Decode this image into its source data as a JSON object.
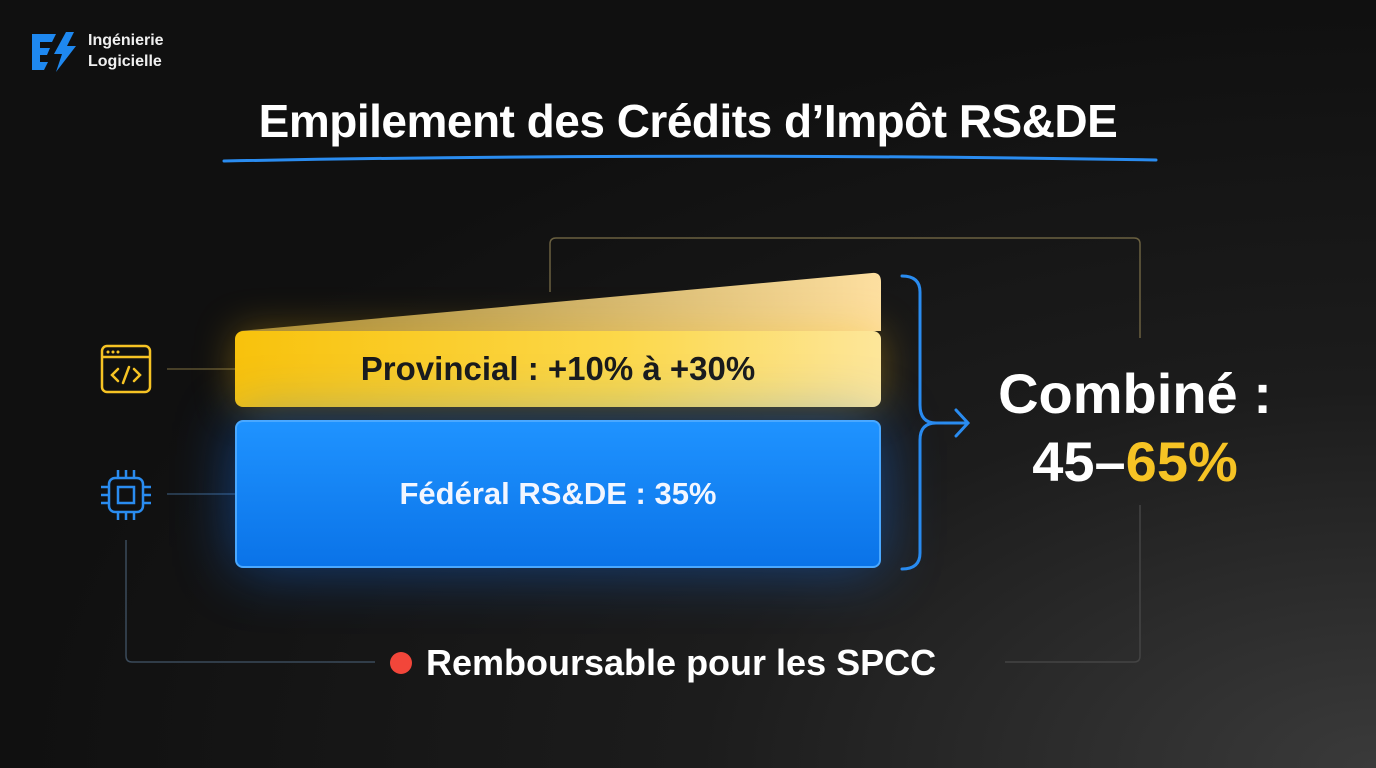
{
  "logo": {
    "line1": "Ingénierie",
    "line2": "Logicielle",
    "color": "#1e88f0"
  },
  "title": "Empilement des Crédits d’Impôt RS&DE",
  "provincial": {
    "label": "Provincial : +10% à +30%",
    "icon": "code-window-icon",
    "color": "#f8c20c"
  },
  "federal": {
    "label": "Fédéral RS&DE : 35%",
    "icon": "cpu-chip-icon",
    "color": "#0a73e8"
  },
  "combined": {
    "label": "Combiné :",
    "range_low": "45–",
    "range_high": "65%",
    "accent": "#f6c324"
  },
  "note": {
    "text": "Remboursable pour les SPCC",
    "dot_color": "#f2463a"
  }
}
